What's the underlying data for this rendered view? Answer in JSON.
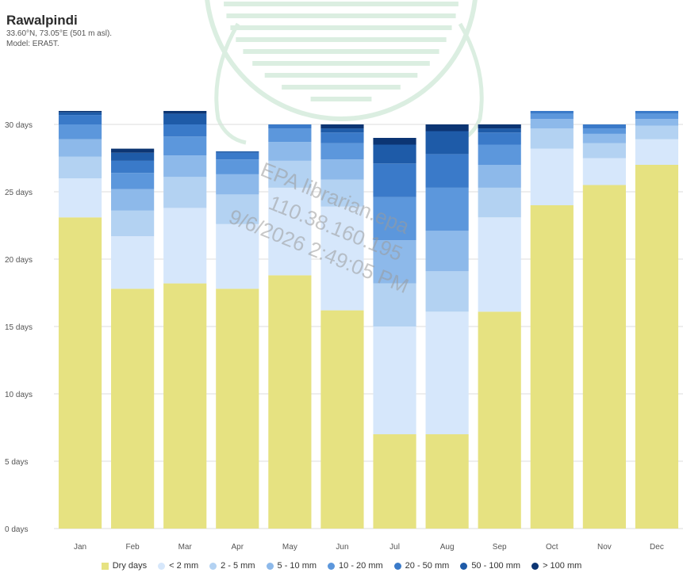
{
  "header": {
    "title": "Rawalpindi",
    "coords": "33.60°N, 73.05°E (501 m asl).",
    "model": "Model: ERA5T."
  },
  "watermark": {
    "line1": "EPA librarian.epa",
    "line2": "110.38.160.195",
    "line3": "9/6/2026 2:49:05 PM",
    "seal_color": "#5fb37a"
  },
  "chart_data": {
    "type": "bar",
    "stacked": true,
    "title": "",
    "xlabel": "",
    "ylabel": "",
    "ylim": [
      0,
      31
    ],
    "y_ticks": [
      {
        "value": 0,
        "label": "0 days"
      },
      {
        "value": 5,
        "label": "5 days"
      },
      {
        "value": 10,
        "label": "10 days"
      },
      {
        "value": 15,
        "label": "15 days"
      },
      {
        "value": 20,
        "label": "20 days"
      },
      {
        "value": 25,
        "label": "25 days"
      },
      {
        "value": 30,
        "label": "30 days"
      }
    ],
    "grid": true,
    "legend_position": "bottom",
    "categories": [
      "Jan",
      "Feb",
      "Mar",
      "Apr",
      "May",
      "Jun",
      "Jul",
      "Aug",
      "Sep",
      "Oct",
      "Nov",
      "Dec"
    ],
    "series": [
      {
        "name": "Dry days",
        "color": "#e6e281",
        "values": [
          23.1,
          17.8,
          18.2,
          17.8,
          18.8,
          16.2,
          7.0,
          7.0,
          16.1,
          24.0,
          25.5,
          27.0
        ]
      },
      {
        "name": "< 2 mm",
        "color": "#d6e7fb",
        "values": [
          2.9,
          3.9,
          5.6,
          4.8,
          6.5,
          7.7,
          8.0,
          9.1,
          7.0,
          4.2,
          2.0,
          1.9
        ]
      },
      {
        "name": "2 - 5 mm",
        "color": "#b3d2f2",
        "values": [
          1.6,
          1.9,
          2.3,
          2.2,
          2.0,
          2.0,
          3.2,
          3.0,
          2.2,
          1.5,
          1.1,
          1.0
        ]
      },
      {
        "name": "5 - 10 mm",
        "color": "#8db9ea",
        "values": [
          1.3,
          1.6,
          1.6,
          1.5,
          1.4,
          1.5,
          3.2,
          3.0,
          1.7,
          0.7,
          0.7,
          0.5
        ]
      },
      {
        "name": "10 - 20 mm",
        "color": "#5c97dc",
        "values": [
          1.1,
          1.2,
          1.4,
          1.1,
          1.0,
          1.2,
          3.2,
          3.2,
          1.5,
          0.4,
          0.4,
          0.4
        ]
      },
      {
        "name": "20 - 50 mm",
        "color": "#3a7ac9",
        "values": [
          0.7,
          0.9,
          0.9,
          0.5,
          0.3,
          0.8,
          2.5,
          2.5,
          0.9,
          0.2,
          0.3,
          0.2
        ]
      },
      {
        "name": "50 - 100 mm",
        "color": "#1e5ba8",
        "values": [
          0.2,
          0.6,
          0.8,
          0.1,
          0.0,
          0.3,
          1.4,
          1.7,
          0.3,
          0.0,
          0.0,
          0.0
        ]
      },
      {
        "name": "> 100 mm",
        "color": "#0c3573",
        "values": [
          0.1,
          0.3,
          0.2,
          0.0,
          0.0,
          0.3,
          0.5,
          0.5,
          0.3,
          0.0,
          0.0,
          0.0
        ]
      }
    ]
  }
}
